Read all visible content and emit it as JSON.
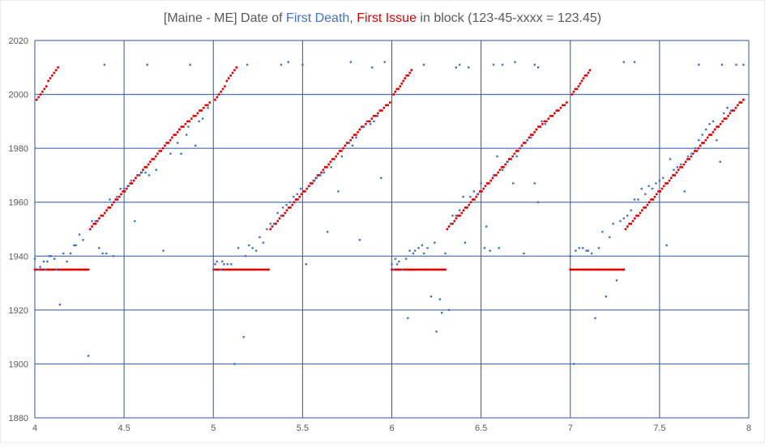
{
  "chart_data": {
    "type": "scatter",
    "title_parts": [
      {
        "text": "[Maine - ME] Date of ",
        "color": "#595959"
      },
      {
        "text": "First Death",
        "color": "#4472C4"
      },
      {
        "text": ", ",
        "color": "#595959"
      },
      {
        "text": "First Issue",
        "color": "#E00000"
      },
      {
        "text": " in block (123-45-xxxx = 123.45)",
        "color": "#595959"
      }
    ],
    "xlim": [
      4,
      8
    ],
    "ylim": [
      1880,
      2020
    ],
    "x_ticks": [
      "4",
      "4.5",
      "5",
      "5.5",
      "6",
      "6.5",
      "7",
      "7.5",
      "8"
    ],
    "y_ticks": [
      "1880",
      "1900",
      "1920",
      "1940",
      "1960",
      "1980",
      "2000",
      "2020"
    ],
    "grid": true,
    "legend": "none",
    "series": [
      {
        "color": "#4472C4",
        "points": [
          [
            4.0,
            1939
          ],
          [
            4.02,
            1935
          ],
          [
            4.03,
            1936
          ],
          [
            4.05,
            1938
          ],
          [
            4.06,
            1935
          ],
          [
            4.07,
            1938
          ],
          [
            4.08,
            1940
          ],
          [
            4.09,
            1940
          ],
          [
            4.11,
            1939
          ],
          [
            4.12,
            1935
          ],
          [
            4.14,
            1922
          ],
          [
            4.16,
            1941
          ],
          [
            4.18,
            1938
          ],
          [
            4.2,
            1941
          ],
          [
            4.22,
            1944
          ],
          [
            4.23,
            1944
          ],
          [
            4.25,
            1948
          ],
          [
            4.27,
            1946
          ],
          [
            4.3,
            1903
          ],
          [
            4.32,
            1953
          ],
          [
            4.34,
            1953
          ],
          [
            4.36,
            1943
          ],
          [
            4.38,
            1941
          ],
          [
            4.39,
            2011
          ],
          [
            4.4,
            1941
          ],
          [
            4.42,
            1961
          ],
          [
            4.44,
            1940
          ],
          [
            4.46,
            1962
          ],
          [
            4.48,
            1965
          ],
          [
            4.5,
            1965
          ],
          [
            4.52,
            1966
          ],
          [
            4.54,
            1968
          ],
          [
            4.56,
            1953
          ],
          [
            4.58,
            1970
          ],
          [
            4.6,
            1971
          ],
          [
            4.62,
            1971
          ],
          [
            4.63,
            2011
          ],
          [
            4.64,
            1970
          ],
          [
            4.68,
            1972
          ],
          [
            4.72,
            1942
          ],
          [
            4.76,
            1978
          ],
          [
            4.8,
            1982
          ],
          [
            4.82,
            1978
          ],
          [
            4.85,
            1985
          ],
          [
            4.86,
            1988
          ],
          [
            4.87,
            2011
          ],
          [
            4.9,
            1981
          ],
          [
            4.92,
            1990
          ],
          [
            4.94,
            1991
          ],
          [
            4.97,
            1995
          ],
          [
            5.0,
            1935
          ],
          [
            5.01,
            1937
          ],
          [
            5.02,
            1938
          ],
          [
            5.04,
            1935
          ],
          [
            5.05,
            1938
          ],
          [
            5.06,
            1937
          ],
          [
            5.08,
            1937
          ],
          [
            5.1,
            1937
          ],
          [
            5.12,
            1900
          ],
          [
            5.14,
            1943
          ],
          [
            5.17,
            1910
          ],
          [
            5.18,
            1940
          ],
          [
            5.2,
            1944
          ],
          [
            5.22,
            1943
          ],
          [
            5.24,
            1942
          ],
          [
            5.26,
            1947
          ],
          [
            5.28,
            1945
          ],
          [
            5.3,
            1950
          ],
          [
            5.32,
            1952
          ],
          [
            5.34,
            1952
          ],
          [
            5.36,
            1956
          ],
          [
            5.38,
            1955
          ],
          [
            5.39,
            1958
          ],
          [
            5.41,
            1959
          ],
          [
            5.43,
            1960
          ],
          [
            5.45,
            1962
          ],
          [
            5.47,
            1963
          ],
          [
            5.49,
            1965
          ],
          [
            5.52,
            1937
          ],
          [
            5.54,
            1966
          ],
          [
            5.56,
            1968
          ],
          [
            5.58,
            1969
          ],
          [
            5.6,
            1970
          ],
          [
            5.62,
            1971
          ],
          [
            5.64,
            1949
          ],
          [
            5.66,
            1973
          ],
          [
            5.7,
            1964
          ],
          [
            5.72,
            1977
          ],
          [
            5.76,
            1982
          ],
          [
            5.78,
            1981
          ],
          [
            5.8,
            1984
          ],
          [
            5.82,
            1946
          ],
          [
            5.84,
            1988
          ],
          [
            5.86,
            1990
          ],
          [
            5.88,
            1989
          ],
          [
            5.9,
            1990
          ],
          [
            5.92,
            1992
          ],
          [
            5.94,
            1969
          ],
          [
            5.19,
            2011
          ],
          [
            5.38,
            2011
          ],
          [
            5.42,
            2012
          ],
          [
            5.5,
            2011
          ],
          [
            5.77,
            2012
          ],
          [
            5.89,
            2010
          ],
          [
            5.96,
            2012
          ],
          [
            6.0,
            1937
          ],
          [
            6.01,
            1935
          ],
          [
            6.02,
            1939
          ],
          [
            6.03,
            1937
          ],
          [
            6.04,
            1938
          ],
          [
            6.06,
            1935
          ],
          [
            6.08,
            1939
          ],
          [
            6.09,
            1917
          ],
          [
            6.1,
            1942
          ],
          [
            6.12,
            1941
          ],
          [
            6.13,
            1942
          ],
          [
            6.15,
            1943
          ],
          [
            6.17,
            1944
          ],
          [
            6.18,
            1941
          ],
          [
            6.2,
            1943
          ],
          [
            6.22,
            1925
          ],
          [
            6.24,
            1945
          ],
          [
            6.25,
            1912
          ],
          [
            6.27,
            1924
          ],
          [
            6.28,
            1919
          ],
          [
            6.3,
            1941
          ],
          [
            6.32,
            1920
          ],
          [
            6.33,
            1952
          ],
          [
            6.34,
            1955
          ],
          [
            6.36,
            1955
          ],
          [
            6.38,
            1957
          ],
          [
            6.4,
            1962
          ],
          [
            6.41,
            1945
          ],
          [
            6.44,
            1962
          ],
          [
            6.46,
            1964
          ],
          [
            6.48,
            1963
          ],
          [
            6.5,
            1967
          ],
          [
            6.52,
            1943
          ],
          [
            6.53,
            1951
          ],
          [
            6.55,
            1942
          ],
          [
            6.57,
            1970
          ],
          [
            6.59,
            1977
          ],
          [
            6.6,
            1943
          ],
          [
            6.62,
            1972
          ],
          [
            6.65,
            1975
          ],
          [
            6.68,
            1967
          ],
          [
            6.7,
            1977
          ],
          [
            6.72,
            1980
          ],
          [
            6.74,
            1941
          ],
          [
            6.76,
            1983
          ],
          [
            6.78,
            1984
          ],
          [
            6.8,
            1967
          ],
          [
            6.82,
            1960
          ],
          [
            6.84,
            1990
          ],
          [
            6.86,
            1989
          ],
          [
            6.18,
            2011
          ],
          [
            6.36,
            2010
          ],
          [
            6.38,
            2011
          ],
          [
            6.43,
            2010
          ],
          [
            6.57,
            2011
          ],
          [
            6.62,
            2011
          ],
          [
            6.69,
            2012
          ],
          [
            6.8,
            2011
          ],
          [
            6.82,
            2010
          ],
          [
            7.0,
            1940
          ],
          [
            7.02,
            1900
          ],
          [
            7.03,
            1942
          ],
          [
            7.05,
            1943
          ],
          [
            7.07,
            1943
          ],
          [
            7.09,
            1942
          ],
          [
            7.1,
            1942
          ],
          [
            7.12,
            1941
          ],
          [
            7.14,
            1917
          ],
          [
            7.16,
            1943
          ],
          [
            7.18,
            1949
          ],
          [
            7.2,
            1925
          ],
          [
            7.22,
            1947
          ],
          [
            7.24,
            1952
          ],
          [
            7.26,
            1931
          ],
          [
            7.28,
            1953
          ],
          [
            7.3,
            1954
          ],
          [
            7.32,
            1955
          ],
          [
            7.34,
            1957
          ],
          [
            7.36,
            1961
          ],
          [
            7.38,
            1961
          ],
          [
            7.4,
            1965
          ],
          [
            7.42,
            1963
          ],
          [
            7.44,
            1966
          ],
          [
            7.46,
            1965
          ],
          [
            7.48,
            1967
          ],
          [
            7.5,
            1968
          ],
          [
            7.52,
            1969
          ],
          [
            7.54,
            1944
          ],
          [
            7.56,
            1976
          ],
          [
            7.58,
            1972
          ],
          [
            7.6,
            1973
          ],
          [
            7.62,
            1974
          ],
          [
            7.64,
            1964
          ],
          [
            7.66,
            1977
          ],
          [
            7.68,
            1978
          ],
          [
            7.7,
            1980
          ],
          [
            7.72,
            1983
          ],
          [
            7.74,
            1985
          ],
          [
            7.76,
            1987
          ],
          [
            7.78,
            1989
          ],
          [
            7.8,
            1990
          ],
          [
            7.82,
            1983
          ],
          [
            7.84,
            1975
          ],
          [
            7.86,
            1993
          ],
          [
            7.88,
            1995
          ],
          [
            7.9,
            1994
          ],
          [
            7.3,
            2012
          ],
          [
            7.36,
            2012
          ],
          [
            7.72,
            2011
          ],
          [
            7.85,
            2011
          ],
          [
            7.93,
            2011
          ],
          [
            7.97,
            2011
          ]
        ]
      },
      {
        "color": "#E00000",
        "segments": [
          {
            "flat_x": [
              4.0,
              4.3
            ],
            "flat_y": 1935,
            "rise_x": [
              4.31,
              4.81
            ],
            "rise_y": [
              1950,
              1987
            ],
            "top_x": [
              4.81,
              4.98
            ],
            "top_y": [
              1987,
              1997
            ],
            "end_x": [
              4.01,
              4.13
            ],
            "end_y": [
              1998,
              2010
            ]
          },
          {
            "flat_x": [
              5.0,
              5.31
            ],
            "flat_y": 1935,
            "rise_x": [
              5.32,
              5.82
            ],
            "rise_y": [
              1950,
              1987
            ],
            "top_x": [
              5.82,
              5.99
            ],
            "top_y": [
              1987,
              1997
            ],
            "end_x": [
              5.01,
              5.13
            ],
            "end_y": [
              1998,
              2010
            ]
          },
          {
            "flat_x": [
              6.0,
              6.3
            ],
            "flat_y": 1935,
            "rise_x": [
              6.31,
              6.81
            ],
            "rise_y": [
              1950,
              1987
            ],
            "top_x": [
              6.81,
              6.98
            ],
            "top_y": [
              1987,
              1997
            ],
            "end_x": [
              6.01,
              6.11
            ],
            "end_y": [
              2000,
              2009
            ]
          },
          {
            "flat_x": [
              7.0,
              7.3
            ],
            "flat_y": 1935,
            "rise_x": [
              7.31,
              7.81
            ],
            "rise_y": [
              1950,
              1987
            ],
            "top_x": [
              7.81,
              7.97
            ],
            "top_y": [
              1987,
              1998
            ],
            "end_x": [
              7.01,
              7.11
            ],
            "end_y": [
              2000,
              2009
            ]
          }
        ]
      }
    ]
  }
}
